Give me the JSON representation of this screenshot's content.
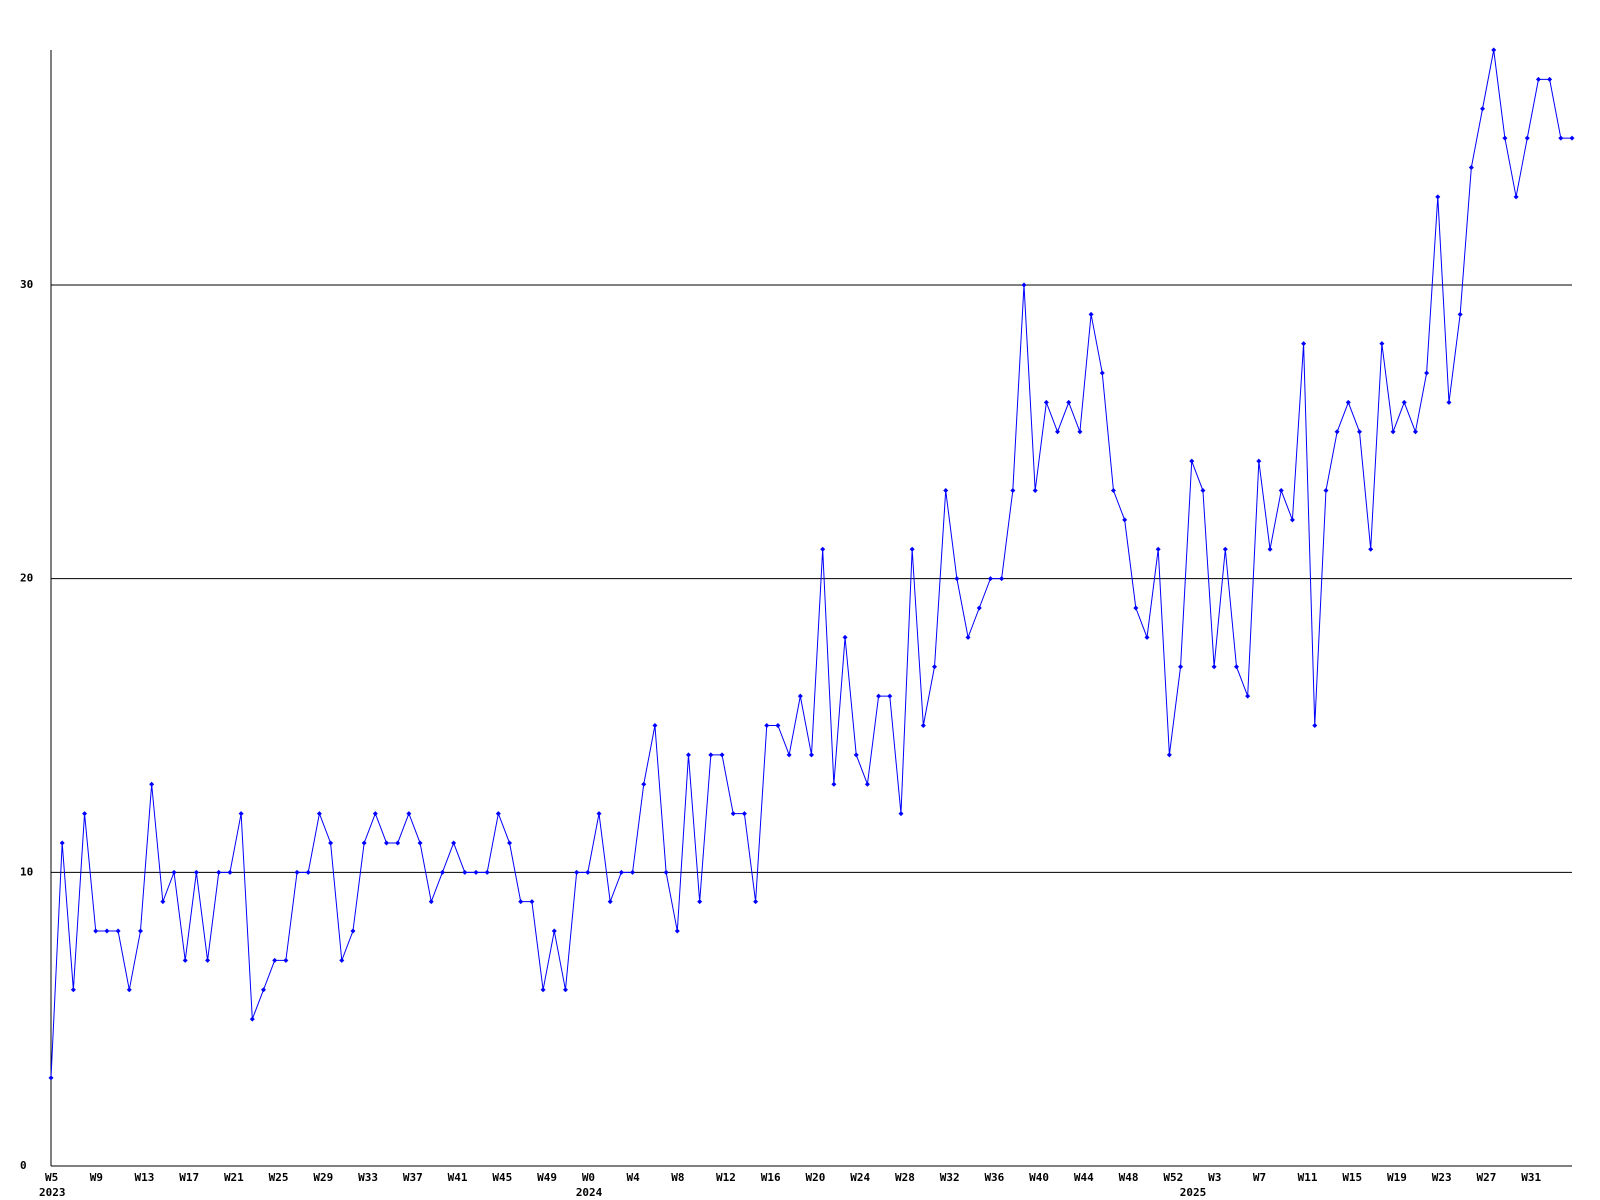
{
  "chart_data": {
    "type": "line",
    "categories": [
      "W5",
      null,
      null,
      null,
      "W9",
      null,
      null,
      null,
      "W13",
      null,
      null,
      null,
      "W17",
      null,
      null,
      null,
      "W21",
      null,
      null,
      null,
      "W25",
      null,
      null,
      null,
      "W29",
      null,
      null,
      null,
      "W33",
      null,
      null,
      null,
      "W37",
      null,
      null,
      null,
      "W41",
      null,
      null,
      null,
      "W45",
      null,
      null,
      null,
      "W49",
      null,
      null,
      null,
      "W0",
      null,
      null,
      null,
      "W4",
      null,
      null,
      null,
      "W8",
      null,
      null,
      null,
      "W12",
      null,
      null,
      null,
      "W16",
      null,
      null,
      null,
      "W20",
      null,
      null,
      null,
      "W24",
      null,
      null,
      null,
      "W28",
      null,
      null,
      null,
      "W32",
      null,
      null,
      null,
      "W36",
      null,
      null,
      null,
      "W40",
      null,
      null,
      null,
      "W44",
      null,
      null,
      null,
      "W48",
      null,
      null,
      null,
      "W52",
      null,
      null,
      null,
      "W3",
      null,
      null,
      null,
      "W7",
      null,
      null,
      null,
      "W11",
      null,
      null,
      null,
      "W15",
      null,
      null,
      null,
      "W19",
      null,
      null,
      null,
      "W23",
      null,
      null,
      null,
      "W27",
      null,
      null,
      null,
      "W31",
      null,
      null,
      null,
      null
    ],
    "years": [
      "2023",
      null,
      null,
      null,
      null,
      null,
      null,
      null,
      null,
      null,
      null,
      null,
      null,
      null,
      null,
      null,
      null,
      null,
      null,
      null,
      null,
      null,
      null,
      null,
      null,
      null,
      null,
      null,
      null,
      null,
      null,
      null,
      null,
      null,
      null,
      null,
      null,
      null,
      null,
      null,
      null,
      null,
      null,
      null,
      null,
      null,
      null,
      null,
      "2024",
      null,
      null,
      null,
      null,
      null,
      null,
      null,
      null,
      null,
      null,
      null,
      null,
      null,
      null,
      null,
      null,
      null,
      null,
      null,
      null,
      null,
      null,
      null,
      null,
      null,
      null,
      null,
      null,
      null,
      null,
      null,
      null,
      null,
      null,
      null,
      null,
      null,
      null,
      null,
      null,
      null,
      null,
      null,
      null,
      null,
      null,
      null,
      null,
      null,
      null,
      null,
      null,
      null,
      "2025",
      null,
      null,
      null,
      null,
      null,
      null,
      null,
      null,
      null,
      null,
      null,
      null,
      null,
      null,
      null,
      null,
      null,
      null,
      null,
      null,
      null,
      null,
      null,
      null,
      null,
      null,
      null,
      null,
      null,
      null,
      null,
      null,
      null
    ],
    "series": [
      {
        "color": "#0000ff",
        "values": [
          3,
          11,
          6,
          12,
          8,
          8,
          8,
          6,
          8,
          13,
          9,
          10,
          7,
          10,
          7,
          10,
          10,
          12,
          5,
          6,
          7,
          7,
          10,
          10,
          12,
          11,
          7,
          8,
          11,
          12,
          11,
          11,
          12,
          11,
          9,
          10,
          11,
          10,
          10,
          10,
          12,
          11,
          9,
          9,
          6,
          8,
          6,
          10,
          10,
          12,
          9,
          10,
          10,
          13,
          15,
          10,
          8,
          14,
          9,
          14,
          14,
          12,
          12,
          9,
          15,
          15,
          14,
          16,
          14,
          21,
          13,
          18,
          14,
          13,
          16,
          16,
          12,
          21,
          15,
          17,
          23,
          20,
          18,
          19,
          20,
          20,
          23,
          30,
          23,
          26,
          25,
          26,
          25,
          29,
          27,
          23,
          22,
          19,
          18,
          21,
          14,
          17,
          24,
          23,
          17,
          21,
          17,
          16,
          24,
          21,
          23,
          22,
          28,
          15,
          23,
          25,
          26,
          25,
          21,
          28,
          25,
          26,
          25,
          27,
          33,
          26,
          29,
          34,
          36,
          38,
          35,
          33,
          35,
          37,
          37,
          35,
          35
        ]
      }
    ],
    "ylim": [
      0,
      38
    ],
    "yticks": [
      0,
      10,
      20,
      30
    ],
    "grid": true
  }
}
